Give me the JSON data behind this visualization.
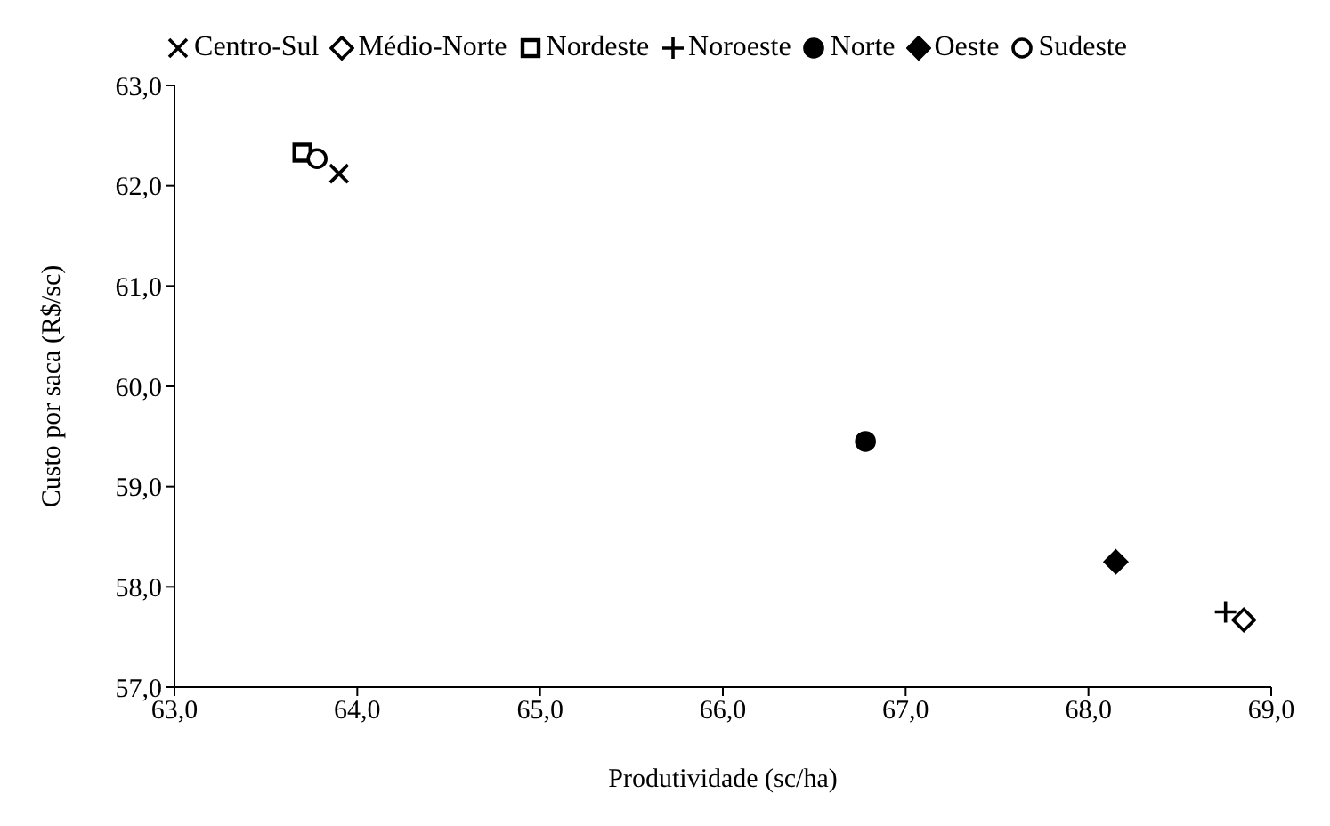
{
  "chart_data": {
    "type": "scatter",
    "xlabel": "Produtividade (sc/ha)",
    "ylabel": "Custo por saca (R$/sc)",
    "xlim": [
      63,
      69
    ],
    "ylim": [
      57,
      63
    ],
    "xticks": [
      {
        "value": 63,
        "label": "63,0"
      },
      {
        "value": 64,
        "label": "64,0"
      },
      {
        "value": 65,
        "label": "65,0"
      },
      {
        "value": 66,
        "label": "66,0"
      },
      {
        "value": 67,
        "label": "67,0"
      },
      {
        "value": 68,
        "label": "68,0"
      },
      {
        "value": 69,
        "label": "69,0"
      }
    ],
    "yticks": [
      {
        "value": 57,
        "label": "57,0"
      },
      {
        "value": 58,
        "label": "58,0"
      },
      {
        "value": 59,
        "label": "59,0"
      },
      {
        "value": 60,
        "label": "60,0"
      },
      {
        "value": 61,
        "label": "61,0"
      },
      {
        "value": 62,
        "label": "62,0"
      },
      {
        "value": 63,
        "label": "63,0"
      }
    ],
    "grid": false,
    "legend": "top",
    "series": [
      {
        "name": "Centro-Sul",
        "color": "#000000",
        "marker": "cross",
        "x": [
          63.9
        ],
        "values": [
          62.12
        ]
      },
      {
        "name": "Médio-Norte",
        "color": "#000000",
        "marker": "diamond-open",
        "x": [
          68.85
        ],
        "values": [
          57.67
        ]
      },
      {
        "name": "Nordeste",
        "color": "#000000",
        "marker": "square-open",
        "x": [
          63.7
        ],
        "values": [
          62.33
        ]
      },
      {
        "name": "Noroeste",
        "color": "#000000",
        "marker": "plus",
        "x": [
          68.75
        ],
        "values": [
          57.75
        ]
      },
      {
        "name": "Norte",
        "color": "#000000",
        "marker": "circle",
        "x": [
          66.78
        ],
        "values": [
          59.45
        ]
      },
      {
        "name": "Oeste",
        "color": "#000000",
        "marker": "diamond",
        "x": [
          68.15
        ],
        "values": [
          58.25
        ]
      },
      {
        "name": "Sudeste",
        "color": "#000000",
        "marker": "circle-open",
        "x": [
          63.78
        ],
        "values": [
          62.27
        ]
      }
    ]
  }
}
